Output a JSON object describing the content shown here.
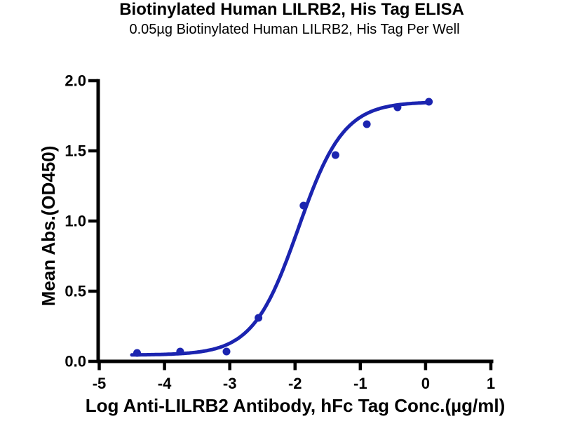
{
  "chart_data": {
    "type": "scatter",
    "title": "Biotinylated Human LILRB2, His Tag ELISA",
    "subtitle": "0.05µg Biotinylated Human LILRB2, His Tag Per Well",
    "xlabel": "Log Anti-LILRB2 Antibody, hFc Tag Conc.(µg/ml)",
    "ylabel": "Mean Abs.(OD450)",
    "xlim": [
      -5,
      1
    ],
    "ylim": [
      0,
      2
    ],
    "x_ticks": [
      "-5",
      "-4",
      "-3",
      "-2",
      "-1",
      "0",
      "1"
    ],
    "y_ticks": [
      "0.0",
      "0.5",
      "1.0",
      "1.5",
      "2.0"
    ],
    "grid": false,
    "legend": "none",
    "points": [
      {
        "x": -4.42,
        "y": 0.06
      },
      {
        "x": -3.76,
        "y": 0.07
      },
      {
        "x": -3.05,
        "y": 0.07
      },
      {
        "x": -2.56,
        "y": 0.31
      },
      {
        "x": -1.87,
        "y": 1.11
      },
      {
        "x": -1.38,
        "y": 1.47
      },
      {
        "x": -0.9,
        "y": 1.69
      },
      {
        "x": -0.43,
        "y": 1.81
      },
      {
        "x": 0.05,
        "y": 1.85
      }
    ],
    "curve_fit": {
      "model": "4PL sigmoidal",
      "bottom": 0.045,
      "top": 1.85,
      "log_ec50": -1.95,
      "hill_slope": 1.25,
      "x_start": -4.5,
      "x_end": 0.05
    },
    "colors": {
      "series": "#1b24b0",
      "axis": "#000000",
      "background": "#ffffff"
    }
  }
}
